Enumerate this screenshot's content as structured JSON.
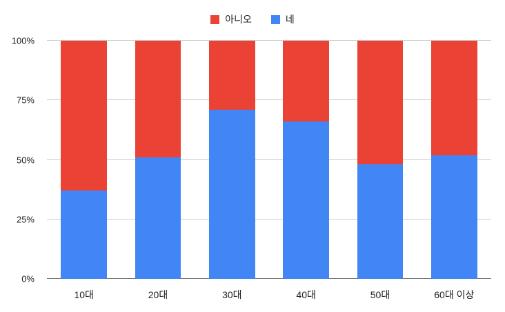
{
  "chart_data": {
    "type": "bar",
    "stacked": true,
    "percent_stacked": true,
    "title": "",
    "xlabel": "",
    "ylabel": "",
    "categories": [
      "10대",
      "20대",
      "30대",
      "40대",
      "50대",
      "60대 이상"
    ],
    "series": [
      {
        "name": "아니오",
        "color": "#EA4335",
        "values": [
          63,
          49,
          29,
          34,
          52,
          48
        ]
      },
      {
        "name": "네",
        "color": "#4285F4",
        "values": [
          37,
          51,
          71,
          66,
          48,
          52
        ]
      }
    ],
    "ylim": [
      0,
      100
    ],
    "yticks": [
      {
        "value": 0,
        "label": "0%"
      },
      {
        "value": 25,
        "label": "25%"
      },
      {
        "value": 50,
        "label": "50%"
      },
      {
        "value": 75,
        "label": "75%"
      },
      {
        "value": 100,
        "label": "100%"
      }
    ],
    "legend_position": "top",
    "grid": true,
    "colors": {
      "gridline": "#cccccc",
      "baseline": "#757575",
      "text": "#202124",
      "background": "#ffffff"
    }
  }
}
